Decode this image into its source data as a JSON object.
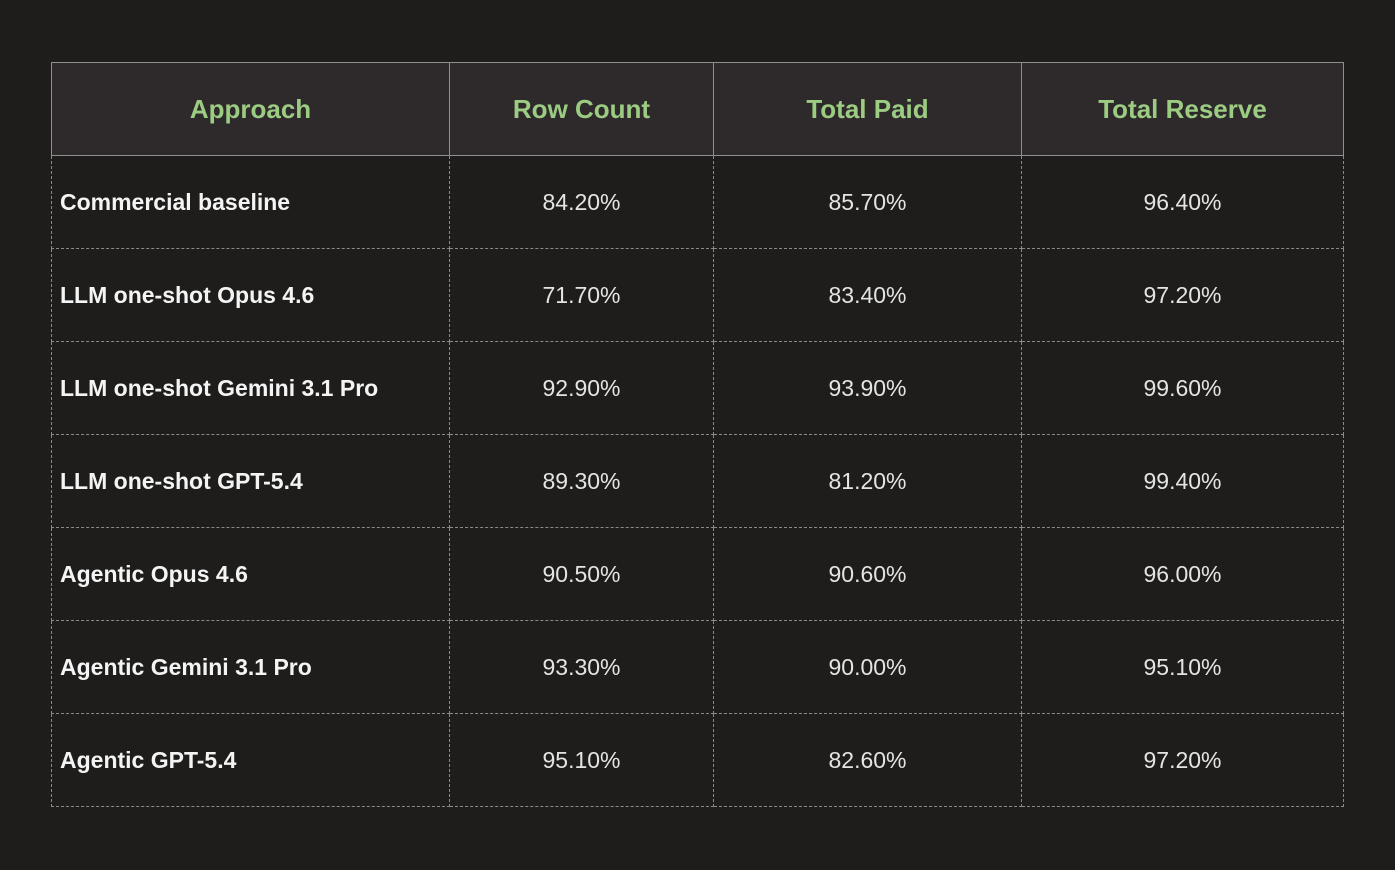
{
  "table": {
    "headers": [
      "Approach",
      "Row Count",
      "Total Paid",
      "Total Reserve"
    ],
    "rows": [
      [
        "Commercial baseline",
        "84.20%",
        "85.70%",
        "96.40%"
      ],
      [
        "LLM one-shot Opus 4.6",
        "71.70%",
        "83.40%",
        "97.20%"
      ],
      [
        "LLM one-shot Gemini 3.1 Pro",
        "92.90%",
        "93.90%",
        "99.60%"
      ],
      [
        "LLM one-shot GPT-5.4",
        "89.30%",
        "81.20%",
        "99.40%"
      ],
      [
        "Agentic Opus 4.6",
        "90.50%",
        "90.60%",
        "96.00%"
      ],
      [
        "Agentic Gemini 3.1 Pro",
        "93.30%",
        "90.00%",
        "95.10%"
      ],
      [
        "Agentic GPT-5.4",
        "95.10%",
        "82.60%",
        "97.20%"
      ]
    ]
  },
  "chart_data": {
    "type": "table",
    "columns": [
      "Approach",
      "Row Count",
      "Total Paid",
      "Total Reserve"
    ],
    "categories": [
      "Commercial baseline",
      "LLM one-shot Opus 4.6",
      "LLM one-shot Gemini 3.1 Pro",
      "LLM one-shot GPT-5.4",
      "Agentic Opus 4.6",
      "Agentic Gemini 3.1 Pro",
      "Agentic GPT-5.4"
    ],
    "series": [
      {
        "name": "Row Count",
        "values": [
          84.2,
          71.7,
          92.9,
          89.3,
          90.5,
          93.3,
          95.1
        ]
      },
      {
        "name": "Total Paid",
        "values": [
          85.7,
          83.4,
          93.9,
          81.2,
          90.6,
          90.0,
          82.6
        ]
      },
      {
        "name": "Total Reserve",
        "values": [
          96.4,
          97.2,
          99.6,
          99.4,
          96.0,
          95.1,
          97.2
        ]
      }
    ]
  },
  "colors": {
    "background": "#1e1d1b",
    "header_background": "#2e2a2c",
    "header_text": "#9ccc82",
    "cell_text": "#e4e4e4"
  }
}
